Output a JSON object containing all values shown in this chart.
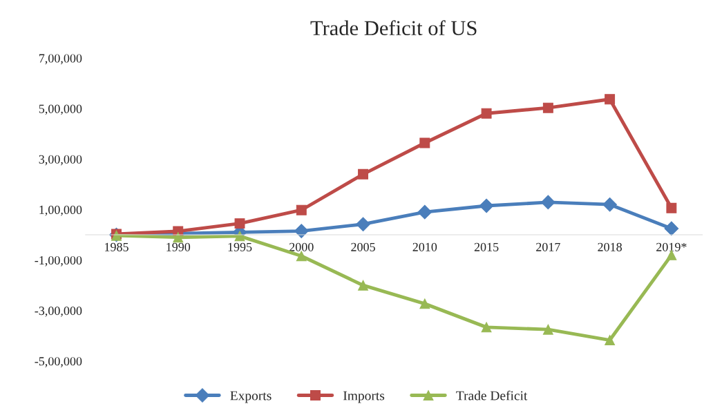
{
  "chart_data": {
    "type": "line",
    "title": "Trade Deficit of US",
    "categories": [
      "1985",
      "1990",
      "1995",
      "2000",
      "2005",
      "2010",
      "2015",
      "2017",
      "2018",
      "2019*"
    ],
    "series": [
      {
        "name": "Exports",
        "color": "#4a7ebb",
        "marker": "diamond",
        "values": [
          0,
          5000,
          10000,
          15000,
          42000,
          90000,
          115000,
          129000,
          120000,
          25000
        ]
      },
      {
        "name": "Imports",
        "color": "#be4b48",
        "marker": "square",
        "values": [
          3000,
          14000,
          45000,
          98000,
          240000,
          364000,
          481000,
          503000,
          537000,
          106000
        ]
      },
      {
        "name": "Trade Deficit",
        "color": "#98b954",
        "marker": "triangle",
        "values": [
          -3000,
          -10000,
          -5000,
          -84000,
          -200000,
          -273000,
          -366000,
          -375000,
          -417000,
          -80000
        ]
      }
    ],
    "ylim": [
      -500000,
      700000
    ],
    "yticks": [
      {
        "value": 700000,
        "label": "7,00,000"
      },
      {
        "value": 500000,
        "label": "5,00,000"
      },
      {
        "value": 300000,
        "label": "3,00,000"
      },
      {
        "value": 100000,
        "label": "1,00,000"
      },
      {
        "value": -100000,
        "label": "-1,00,000"
      },
      {
        "value": -300000,
        "label": "-3,00,000"
      },
      {
        "value": -500000,
        "label": "-5,00,000"
      }
    ],
    "grid": false,
    "legend": "bottom"
  }
}
